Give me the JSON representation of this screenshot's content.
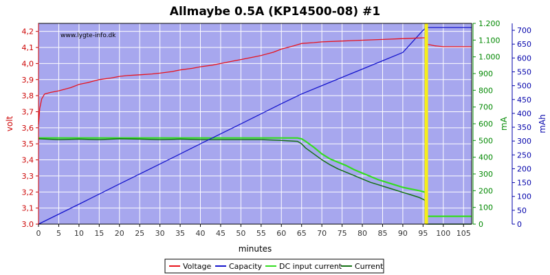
{
  "chart_data": {
    "type": "line",
    "title": "Allmaybe 0.5A (KP14500-08) #1",
    "watermark": "www.lygte-info.dk",
    "xlabel": "minutes",
    "ylabel_left": "volt",
    "ylabel_right1": "mA",
    "ylabel_right2": "mAh",
    "xlim": [
      0,
      107
    ],
    "ylim_left": [
      3.0,
      4.25
    ],
    "ylim_right1": [
      0,
      1200
    ],
    "ylim_right2": [
      0,
      725
    ],
    "x_ticks": [
      "0",
      "5",
      "10",
      "15",
      "20",
      "25",
      "30",
      "35",
      "40",
      "45",
      "50",
      "55",
      "60",
      "65",
      "70",
      "75",
      "80",
      "85",
      "90",
      "95",
      "100",
      "105"
    ],
    "y_left_ticks": [
      "3.0",
      "3,1",
      "3,2",
      "3,3",
      "3,4",
      "3,5",
      "3,6",
      "3,7",
      "3,8",
      "3,9",
      "4,0",
      "4,1",
      "4,2"
    ],
    "y_right1_ticks": [
      "0",
      "100",
      "200",
      "300",
      "400",
      "500",
      "600",
      "700",
      "800",
      "900",
      "1.000",
      "1.100",
      "1.200"
    ],
    "y_right2_ticks": [
      "0",
      "50",
      "100",
      "150",
      "200",
      "250",
      "300",
      "350",
      "400",
      "450",
      "500",
      "550",
      "600",
      "650",
      "700"
    ],
    "grid": true,
    "legend_position": "bottom",
    "colors": {
      "plot_bg": "#a7a7ee",
      "grid": "#ffffff",
      "voltage": "#e8121b",
      "capacity": "#1414cc",
      "dc_input_current": "#33dd1f",
      "current": "#127012",
      "marker": "#f5ee1a",
      "left_axis": "#cc0000",
      "right1_axis": "#008800",
      "right2_axis": "#0000aa"
    },
    "series": [
      {
        "name": "Voltage",
        "axis": "left",
        "points": [
          [
            0,
            3.62
          ],
          [
            0.3,
            3.72
          ],
          [
            0.8,
            3.78
          ],
          [
            1.5,
            3.81
          ],
          [
            3,
            3.82
          ],
          [
            5,
            3.83
          ],
          [
            8,
            3.85
          ],
          [
            10,
            3.87
          ],
          [
            12,
            3.88
          ],
          [
            15,
            3.9
          ],
          [
            18,
            3.91
          ],
          [
            20,
            3.92
          ],
          [
            22,
            3.925
          ],
          [
            25,
            3.93
          ],
          [
            28,
            3.935
          ],
          [
            30,
            3.94
          ],
          [
            33,
            3.95
          ],
          [
            35,
            3.96
          ],
          [
            38,
            3.97
          ],
          [
            40,
            3.98
          ],
          [
            43,
            3.99
          ],
          [
            45,
            4.0
          ],
          [
            48,
            4.015
          ],
          [
            50,
            4.025
          ],
          [
            53,
            4.04
          ],
          [
            55,
            4.05
          ],
          [
            58,
            4.07
          ],
          [
            60,
            4.09
          ],
          [
            63,
            4.11
          ],
          [
            65,
            4.125
          ],
          [
            68,
            4.13
          ],
          [
            70,
            4.135
          ],
          [
            75,
            4.14
          ],
          [
            80,
            4.145
          ],
          [
            85,
            4.15
          ],
          [
            90,
            4.155
          ],
          [
            95,
            4.16
          ],
          [
            95.7,
            4.16
          ],
          [
            95.8,
            4.14
          ],
          [
            96,
            4.12
          ],
          [
            97,
            4.115
          ],
          [
            98,
            4.11
          ],
          [
            100,
            4.105
          ],
          [
            107,
            4.105
          ]
        ]
      },
      {
        "name": "Capacity",
        "axis": "right2",
        "points": [
          [
            0,
            0
          ],
          [
            10,
            72
          ],
          [
            20,
            145
          ],
          [
            30,
            217
          ],
          [
            40,
            290
          ],
          [
            50,
            362
          ],
          [
            60,
            435
          ],
          [
            65,
            470
          ],
          [
            70,
            500
          ],
          [
            75,
            530
          ],
          [
            80,
            560
          ],
          [
            85,
            590
          ],
          [
            90,
            620
          ],
          [
            95,
            700
          ],
          [
            95.8,
            710
          ],
          [
            107,
            710
          ]
        ]
      },
      {
        "name": "DC input current",
        "axis": "right1",
        "points": [
          [
            0,
            515
          ],
          [
            5,
            515
          ],
          [
            10,
            515
          ],
          [
            15,
            515
          ],
          [
            20,
            515
          ],
          [
            25,
            515
          ],
          [
            30,
            515
          ],
          [
            35,
            515
          ],
          [
            40,
            515
          ],
          [
            45,
            515
          ],
          [
            50,
            515
          ],
          [
            55,
            515
          ],
          [
            60,
            515
          ],
          [
            64,
            515
          ],
          [
            65,
            510
          ],
          [
            66,
            495
          ],
          [
            68,
            460
          ],
          [
            70,
            420
          ],
          [
            72,
            390
          ],
          [
            74,
            370
          ],
          [
            76,
            350
          ],
          [
            78,
            325
          ],
          [
            80,
            305
          ],
          [
            82,
            285
          ],
          [
            84,
            265
          ],
          [
            86,
            250
          ],
          [
            88,
            235
          ],
          [
            90,
            220
          ],
          [
            92,
            210
          ],
          [
            94,
            200
          ],
          [
            95.7,
            190
          ],
          [
            95.8,
            20
          ],
          [
            96,
            47
          ],
          [
            107,
            47
          ]
        ]
      },
      {
        "name": "Current",
        "axis": "right1",
        "points": [
          [
            0,
            510
          ],
          [
            5,
            505
          ],
          [
            10,
            508
          ],
          [
            15,
            505
          ],
          [
            20,
            510
          ],
          [
            25,
            508
          ],
          [
            30,
            505
          ],
          [
            35,
            508
          ],
          [
            40,
            505
          ],
          [
            45,
            505
          ],
          [
            50,
            505
          ],
          [
            55,
            505
          ],
          [
            60,
            500
          ],
          [
            64,
            495
          ],
          [
            65,
            480
          ],
          [
            66,
            455
          ],
          [
            68,
            420
          ],
          [
            70,
            385
          ],
          [
            72,
            355
          ],
          [
            74,
            330
          ],
          [
            76,
            310
          ],
          [
            78,
            290
          ],
          [
            80,
            270
          ],
          [
            82,
            250
          ],
          [
            84,
            235
          ],
          [
            86,
            220
          ],
          [
            88,
            205
          ],
          [
            90,
            190
          ],
          [
            92,
            175
          ],
          [
            94,
            160
          ],
          [
            95.7,
            140
          ],
          [
            95.8,
            0
          ],
          [
            107,
            0
          ]
        ]
      }
    ],
    "marker_x": 95.8
  }
}
